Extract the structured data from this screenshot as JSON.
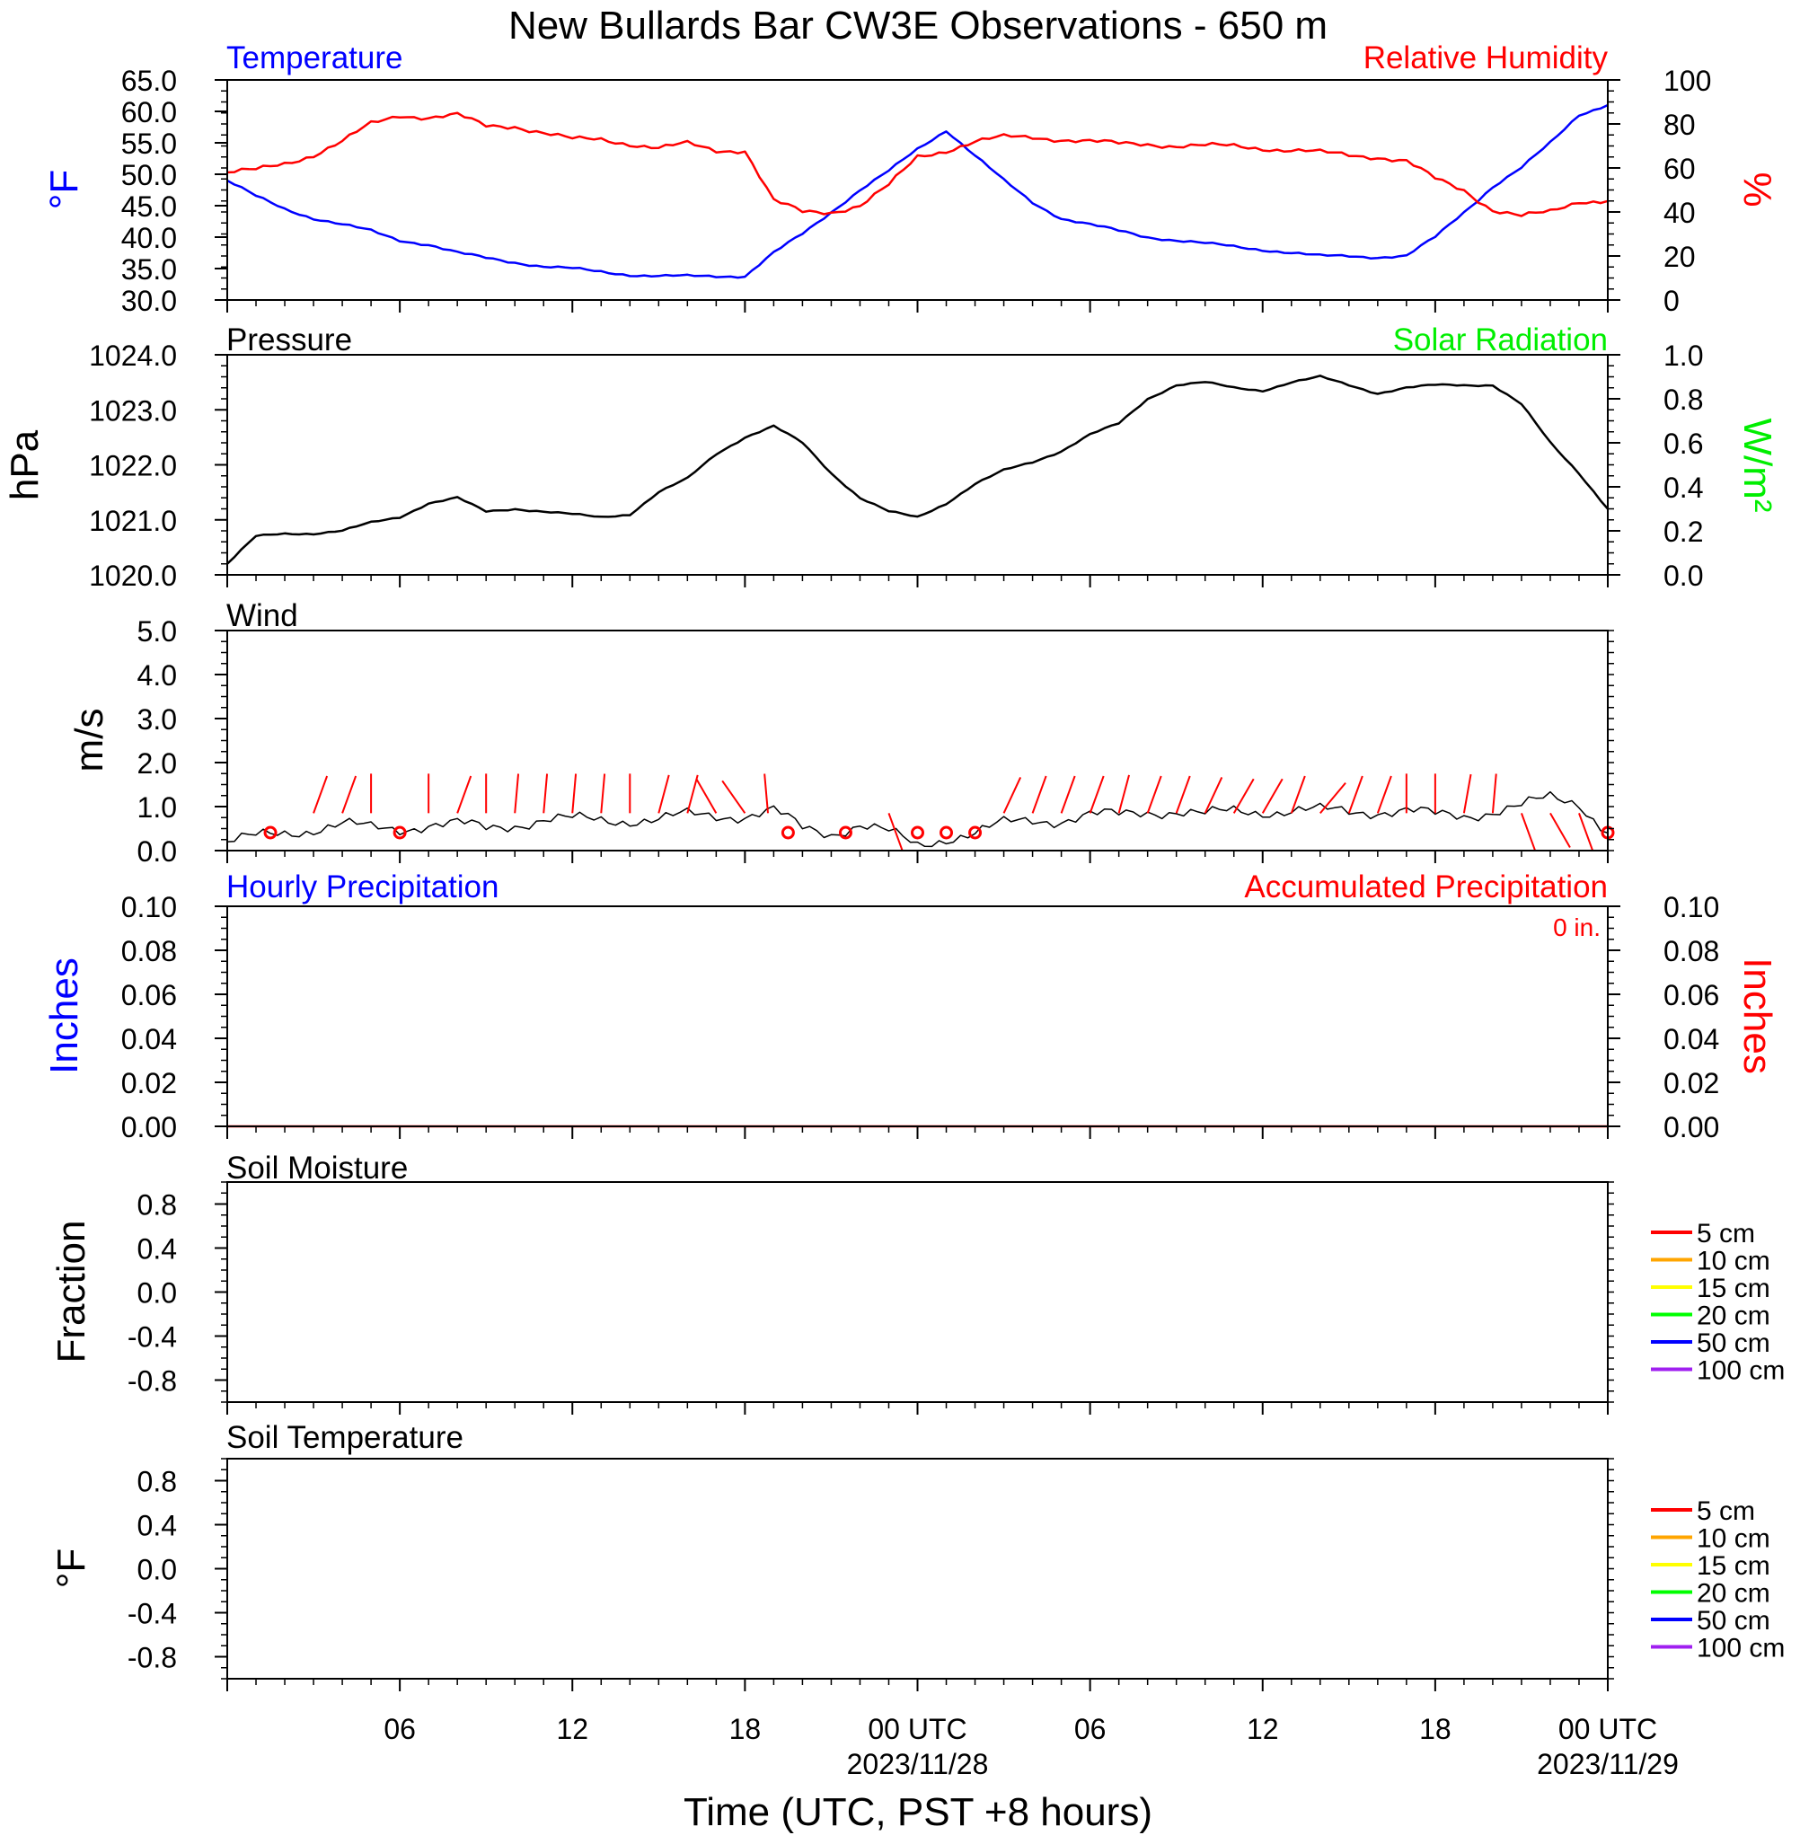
{
  "title": "New Bullards Bar CW3E Observations - 650 m",
  "xlabel": "Time (UTC, PST +8 hours)",
  "x_ticks": [
    {
      "hour": 6,
      "label": "06",
      "sub": ""
    },
    {
      "hour": 12,
      "label": "12",
      "sub": ""
    },
    {
      "hour": 18,
      "label": "18",
      "sub": ""
    },
    {
      "hour": 24,
      "label": "00 UTC",
      "sub": "2023/11/28"
    },
    {
      "hour": 30,
      "label": "06",
      "sub": ""
    },
    {
      "hour": 36,
      "label": "12",
      "sub": ""
    },
    {
      "hour": 42,
      "label": "18",
      "sub": ""
    },
    {
      "hour": 48,
      "label": "00 UTC",
      "sub": "2023/11/29"
    }
  ],
  "colors": {
    "temperature": "#0000ff",
    "humidity": "#ff0000",
    "pressure": "#000000",
    "solar": "#00ee00",
    "wind": "#000000",
    "barbs": "#ff0000"
  },
  "chart_data": [
    {
      "type": "line",
      "panel": "temperature-humidity",
      "title_left": "Temperature",
      "title_right": "Relative Humidity",
      "ylabel_left": "°F",
      "ylabel_right": "%",
      "yticks_left": [
        "65.0",
        "60.0",
        "55.0",
        "50.0",
        "45.0",
        "40.0",
        "35.0",
        "30.0"
      ],
      "yticks_right": [
        "100",
        "80",
        "60",
        "40",
        "20",
        "0"
      ],
      "ylim_left": [
        30,
        65
      ],
      "ylim_right": [
        0,
        100
      ],
      "x_hours": [
        0,
        1,
        2,
        3,
        4,
        5,
        6,
        7,
        8,
        9,
        10,
        11,
        12,
        13,
        14,
        15,
        16,
        17,
        18,
        19,
        20,
        21,
        22,
        23,
        24,
        25,
        26,
        27,
        28,
        29,
        30,
        31,
        32,
        33,
        34,
        35,
        36,
        37,
        38,
        39,
        40,
        41,
        42,
        43,
        44,
        45,
        46,
        47,
        48
      ],
      "series": [
        {
          "name": "Temperature",
          "axis": "left",
          "values": [
            49,
            46.5,
            44.5,
            43,
            42,
            41,
            39.5,
            38.8,
            37.5,
            36.7,
            36,
            35.3,
            35,
            34.5,
            34,
            33.8,
            33.8,
            33.8,
            33.8,
            37.5,
            40.5,
            44,
            47.5,
            50.5,
            54,
            57,
            53,
            49,
            45.5,
            43,
            42,
            41,
            40,
            39.5,
            39,
            38.5,
            38,
            37.5,
            37,
            37,
            36.8,
            37,
            40,
            44,
            48,
            51,
            55,
            59.5,
            61
          ]
        },
        {
          "name": "Relative Humidity",
          "axis": "right",
          "values": [
            58,
            59,
            62,
            66,
            72,
            80,
            84,
            83,
            84,
            79,
            79,
            76,
            73,
            73,
            71,
            69,
            71,
            68,
            68,
            45,
            40,
            40,
            43,
            52,
            65,
            68,
            72,
            74,
            74,
            73,
            72,
            71,
            71,
            70,
            70,
            70,
            69,
            68,
            67,
            66,
            65,
            63,
            55,
            50,
            41,
            38,
            40,
            45,
            45
          ]
        }
      ]
    },
    {
      "type": "line",
      "panel": "pressure-solar",
      "title_left": "Pressure",
      "title_right": "Solar Radiation",
      "ylabel_left": "hPa",
      "ylabel_right": "W/m²",
      "yticks_left": [
        "1024.0",
        "1023.0",
        "1022.0",
        "1021.0",
        "1020.0"
      ],
      "yticks_right": [
        "1.0",
        "0.8",
        "0.6",
        "0.4",
        "0.2",
        "0.0"
      ],
      "ylim_left": [
        1020,
        1024
      ],
      "ylim_right": [
        0,
        1
      ],
      "x_hours": [
        0,
        1,
        2,
        3,
        4,
        5,
        6,
        7,
        8,
        9,
        10,
        11,
        12,
        13,
        14,
        15,
        16,
        17,
        18,
        19,
        20,
        21,
        22,
        23,
        24,
        25,
        26,
        27,
        28,
        29,
        30,
        31,
        32,
        33,
        34,
        35,
        36,
        37,
        38,
        39,
        40,
        41,
        42,
        43,
        44,
        45,
        46,
        47,
        48
      ],
      "series": [
        {
          "name": "Pressure",
          "axis": "left",
          "values": [
            1020.2,
            1020.7,
            1020.75,
            1020.75,
            1020.8,
            1020.95,
            1021.05,
            1021.3,
            1021.4,
            1021.15,
            1021.2,
            1021.15,
            1021.1,
            1021.05,
            1021.1,
            1021.5,
            1021.75,
            1022.2,
            1022.5,
            1022.7,
            1022.4,
            1021.85,
            1021.4,
            1021.15,
            1021.05,
            1021.3,
            1021.65,
            1021.9,
            1022.05,
            1022.25,
            1022.55,
            1022.75,
            1023.2,
            1023.45,
            1023.5,
            1023.4,
            1023.35,
            1023.5,
            1023.6,
            1023.45,
            1023.3,
            1023.4,
            1023.45,
            1023.45,
            1023.45,
            1023.1,
            1022.4,
            1021.85,
            1021.2
          ]
        }
      ]
    },
    {
      "type": "line",
      "panel": "wind",
      "title_left": "Wind",
      "ylabel_left": "m/s",
      "yticks_left": [
        "5.0",
        "4.0",
        "3.0",
        "2.0",
        "1.0",
        "0.0"
      ],
      "ylim_left": [
        0,
        5
      ],
      "x_hours": [
        0,
        1,
        2,
        3,
        4,
        5,
        6,
        7,
        8,
        9,
        10,
        11,
        12,
        13,
        14,
        15,
        16,
        17,
        18,
        19,
        20,
        21,
        22,
        23,
        24,
        25,
        26,
        27,
        28,
        29,
        30,
        31,
        32,
        33,
        34,
        35,
        36,
        37,
        38,
        39,
        40,
        41,
        42,
        43,
        44,
        45,
        46,
        47,
        48
      ],
      "series": [
        {
          "name": "Wind",
          "axis": "left",
          "values": [
            0.2,
            0.3,
            0.4,
            0.5,
            0.6,
            0.5,
            0.5,
            0.6,
            0.6,
            0.5,
            0.6,
            0.7,
            0.7,
            0.7,
            0.7,
            0.7,
            0.8,
            0.8,
            0.8,
            0.9,
            0.5,
            0.4,
            0.6,
            0.4,
            0.1,
            0.3,
            0.4,
            0.6,
            0.7,
            0.7,
            0.8,
            0.8,
            0.9,
            0.9,
            0.8,
            0.9,
            0.9,
            0.9,
            0.9,
            0.9,
            0.9,
            0.9,
            0.8,
            0.8,
            0.9,
            1.0,
            1.2,
            1.1,
            0.4
          ]
        }
      ],
      "barbs": [
        {
          "hour": 1.5,
          "calm": true
        },
        {
          "hour": 3,
          "dir": 340
        },
        {
          "hour": 4,
          "dir": 340
        },
        {
          "hour": 5,
          "dir": 0
        },
        {
          "hour": 6,
          "calm": true
        },
        {
          "hour": 7,
          "dir": 0
        },
        {
          "hour": 8,
          "dir": 340
        },
        {
          "hour": 9,
          "dir": 0
        },
        {
          "hour": 10,
          "dir": 355
        },
        {
          "hour": 11,
          "dir": 355
        },
        {
          "hour": 12,
          "dir": 355
        },
        {
          "hour": 13,
          "dir": 355
        },
        {
          "hour": 14,
          "dir": 0
        },
        {
          "hour": 15,
          "dir": 345
        },
        {
          "hour": 16,
          "dir": 345
        },
        {
          "hour": 17,
          "dir": 30
        },
        {
          "hour": 18,
          "dir": 35
        },
        {
          "hour": 18.8,
          "dir": 5
        },
        {
          "hour": 19.5,
          "calm": true
        },
        {
          "hour": 21.5,
          "calm": true
        },
        {
          "hour": 23,
          "dir": 200
        },
        {
          "hour": 24,
          "calm": true
        },
        {
          "hour": 25,
          "calm": true
        },
        {
          "hour": 26,
          "calm": true
        },
        {
          "hour": 27,
          "dir": 335
        },
        {
          "hour": 28,
          "dir": 340
        },
        {
          "hour": 29,
          "dir": 340
        },
        {
          "hour": 30,
          "dir": 340
        },
        {
          "hour": 31,
          "dir": 345
        },
        {
          "hour": 32,
          "dir": 340
        },
        {
          "hour": 33,
          "dir": 340
        },
        {
          "hour": 34,
          "dir": 335
        },
        {
          "hour": 35,
          "dir": 330
        },
        {
          "hour": 36,
          "dir": 330
        },
        {
          "hour": 37,
          "dir": 340
        },
        {
          "hour": 38,
          "dir": 320
        },
        {
          "hour": 39,
          "dir": 340
        },
        {
          "hour": 40,
          "dir": 340
        },
        {
          "hour": 41,
          "dir": 0
        },
        {
          "hour": 42,
          "dir": 0
        },
        {
          "hour": 43,
          "dir": 350
        },
        {
          "hour": 44,
          "dir": 355
        },
        {
          "hour": 45,
          "dir": 200
        },
        {
          "hour": 46,
          "dir": 210
        },
        {
          "hour": 47,
          "dir": 200
        },
        {
          "hour": 48,
          "calm": true
        }
      ]
    },
    {
      "type": "line",
      "panel": "precipitation",
      "title_left": "Hourly Precipitation",
      "title_right": "Accumulated Precipitation",
      "total_label": "0 in.",
      "ylabel_left": "Inches",
      "ylabel_right": "Inches",
      "yticks_left": [
        "0.10",
        "0.08",
        "0.06",
        "0.04",
        "0.02",
        "0.00"
      ],
      "yticks_right": [
        "0.10",
        "0.08",
        "0.06",
        "0.04",
        "0.02",
        "0.00"
      ],
      "ylim_left": [
        0,
        0.1
      ],
      "ylim_right": [
        0,
        0.1
      ],
      "x_hours": [
        0,
        48
      ],
      "series": [
        {
          "name": "Accumulated Precipitation",
          "axis": "right",
          "values": [
            0,
            0
          ]
        }
      ]
    },
    {
      "type": "line",
      "panel": "soil-moisture",
      "title_left": "Soil Moisture",
      "ylabel_left": "Fraction",
      "yticks_left": [
        "0.8",
        "0.4",
        "0.0",
        "-0.4",
        "-0.8"
      ],
      "ylim_left": [
        -1,
        1
      ],
      "legend": [
        {
          "label": "5 cm",
          "color": "#ff0000"
        },
        {
          "label": "10 cm",
          "color": "#ffa500"
        },
        {
          "label": "15 cm",
          "color": "#ffff00"
        },
        {
          "label": "20 cm",
          "color": "#00ff00"
        },
        {
          "label": "50 cm",
          "color": "#0000ff"
        },
        {
          "label": "100 cm",
          "color": "#a020f0"
        }
      ],
      "series": []
    },
    {
      "type": "line",
      "panel": "soil-temperature",
      "title_left": "Soil Temperature",
      "ylabel_left": "°F",
      "yticks_left": [
        "0.8",
        "0.4",
        "0.0",
        "-0.4",
        "-0.8"
      ],
      "ylim_left": [
        -1,
        1
      ],
      "legend": [
        {
          "label": "5 cm",
          "color": "#ff0000"
        },
        {
          "label": "10 cm",
          "color": "#ffa500"
        },
        {
          "label": "15 cm",
          "color": "#ffff00"
        },
        {
          "label": "20 cm",
          "color": "#00ff00"
        },
        {
          "label": "50 cm",
          "color": "#0000ff"
        },
        {
          "label": "100 cm",
          "color": "#a020f0"
        }
      ],
      "series": []
    }
  ]
}
